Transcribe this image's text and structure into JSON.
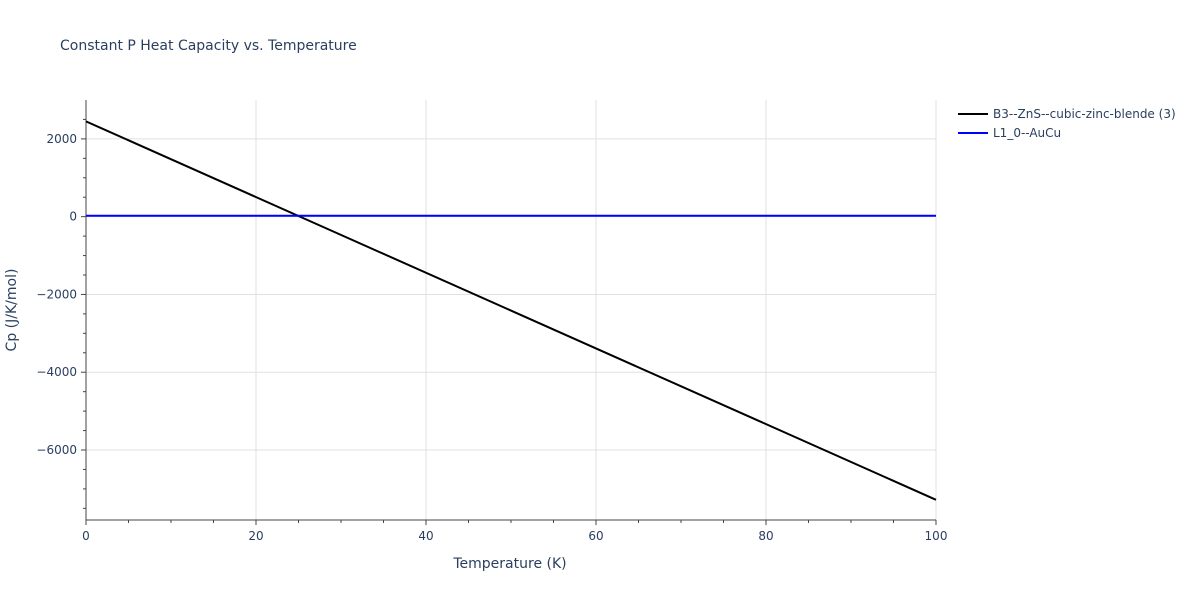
{
  "chart_data": {
    "type": "line",
    "title": "Constant P Heat Capacity vs. Temperature",
    "xlabel": "Temperature (K)",
    "ylabel": "Cp (J/K/mol)",
    "xlim": [
      0,
      100
    ],
    "ylim": [
      -7800,
      3000
    ],
    "x_ticks": [
      0,
      20,
      40,
      60,
      80,
      100
    ],
    "x_tick_labels": [
      "0",
      "20",
      "40",
      "60",
      "80",
      "100"
    ],
    "x_minor_ticks": [
      5,
      10,
      15,
      25,
      30,
      35,
      45,
      50,
      55,
      65,
      70,
      75,
      85,
      90,
      95
    ],
    "y_ticks": [
      2000,
      0,
      -2000,
      -4000,
      -6000
    ],
    "y_tick_labels": [
      "2000",
      "0",
      "−2000",
      "−4000",
      "−6000"
    ],
    "y_minor_ticks": [
      2500,
      1500,
      1000,
      500,
      -500,
      -1000,
      -1500,
      -2500,
      -3000,
      -3500,
      -4500,
      -5000,
      -5500,
      -6500,
      -7000,
      -7500
    ],
    "grid": true,
    "legend_position": "top-right",
    "series": [
      {
        "name": "B3--ZnS--cubic-zinc-blende (3)",
        "color": "#000000",
        "x": [
          0,
          100
        ],
        "y": [
          2450,
          -7280
        ]
      },
      {
        "name": "L1_0--AuCu",
        "color": "#0000ff",
        "x": [
          0,
          100
        ],
        "y": [
          25,
          25
        ]
      }
    ]
  }
}
